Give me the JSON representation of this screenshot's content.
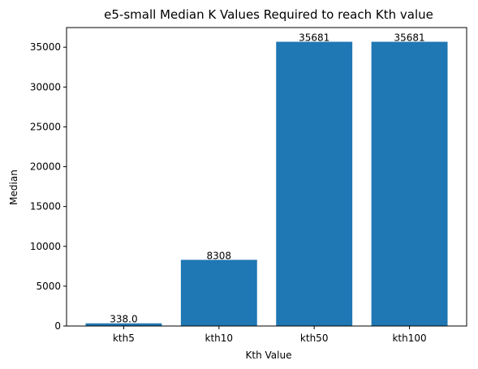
{
  "chart_data": {
    "type": "bar",
    "title": "e5-small Median K Values Required to reach Kth value",
    "xlabel": "Kth Value",
    "ylabel": "Median",
    "categories": [
      "kth5",
      "kth10",
      "kth50",
      "kth100"
    ],
    "values": [
      338.0,
      8308,
      35681,
      35681
    ],
    "value_labels": [
      "338.0",
      "8308",
      "35681",
      "35681"
    ],
    "ylim": [
      0,
      37464
    ],
    "yticks": [
      0,
      5000,
      10000,
      15000,
      20000,
      25000,
      30000,
      35000
    ],
    "grid": false,
    "legend": "none",
    "bar_color": "#1f77b4"
  }
}
